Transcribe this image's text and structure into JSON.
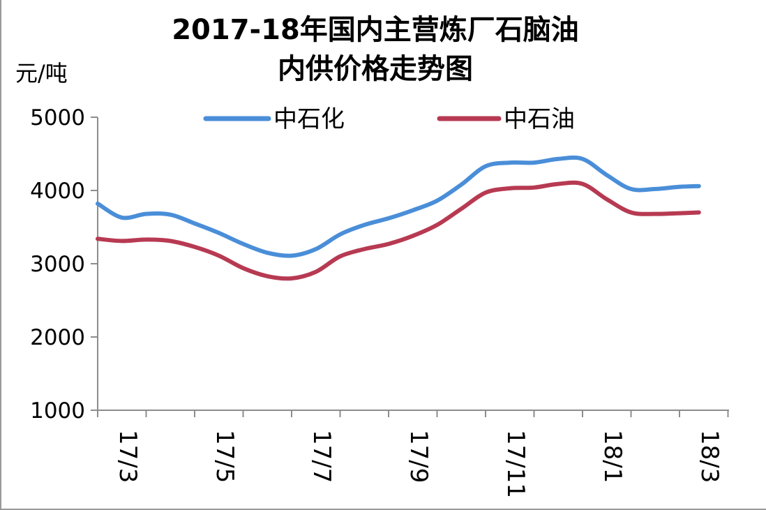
{
  "chart_data": {
    "type": "line",
    "title": "2017-18年国内主营炼厂石脑油 内供价格走势图",
    "title_lines": [
      "2017-18年国内主营炼厂石脑油",
      "内供价格走势图"
    ],
    "ylabel": "元/吨",
    "xlabel": "",
    "ylim": [
      1000,
      5000
    ],
    "yticks": [
      1000,
      2000,
      3000,
      4000,
      5000
    ],
    "x_tick_labels": [
      "17/3",
      "17/5",
      "17/7",
      "17/9",
      "17/11",
      "18/1",
      "18/3"
    ],
    "x_tick_positions": [
      0,
      2,
      4,
      6,
      8,
      10,
      12
    ],
    "x_range": [
      0,
      12.4
    ],
    "grid": false,
    "legend_position": "top",
    "series": [
      {
        "name": "中石化",
        "color": "#4a8ed8",
        "x": [
          0,
          0.5,
          1,
          1.5,
          2,
          2.5,
          3,
          3.5,
          4,
          4.5,
          5,
          5.5,
          6,
          6.5,
          7,
          7.5,
          8,
          8.5,
          9,
          9.5,
          10,
          10.5,
          11,
          11.5,
          12,
          12.4
        ],
        "values": [
          3820,
          3630,
          3680,
          3670,
          3550,
          3420,
          3270,
          3150,
          3110,
          3200,
          3400,
          3530,
          3620,
          3730,
          3860,
          4080,
          4330,
          4380,
          4380,
          4430,
          4430,
          4210,
          4020,
          4020,
          4050,
          4060
        ]
      },
      {
        "name": "中石油",
        "color": "#b73a52",
        "x": [
          0,
          0.5,
          1,
          1.5,
          2,
          2.5,
          3,
          3.5,
          4,
          4.5,
          5,
          5.5,
          6,
          6.5,
          7,
          7.5,
          8,
          8.5,
          9,
          9.5,
          10,
          10.5,
          11,
          11.5,
          12,
          12.4
        ],
        "values": [
          3340,
          3310,
          3330,
          3310,
          3230,
          3110,
          2940,
          2830,
          2800,
          2890,
          3100,
          3200,
          3270,
          3380,
          3530,
          3750,
          3970,
          4030,
          4040,
          4090,
          4090,
          3880,
          3700,
          3680,
          3690,
          3700
        ]
      }
    ]
  }
}
